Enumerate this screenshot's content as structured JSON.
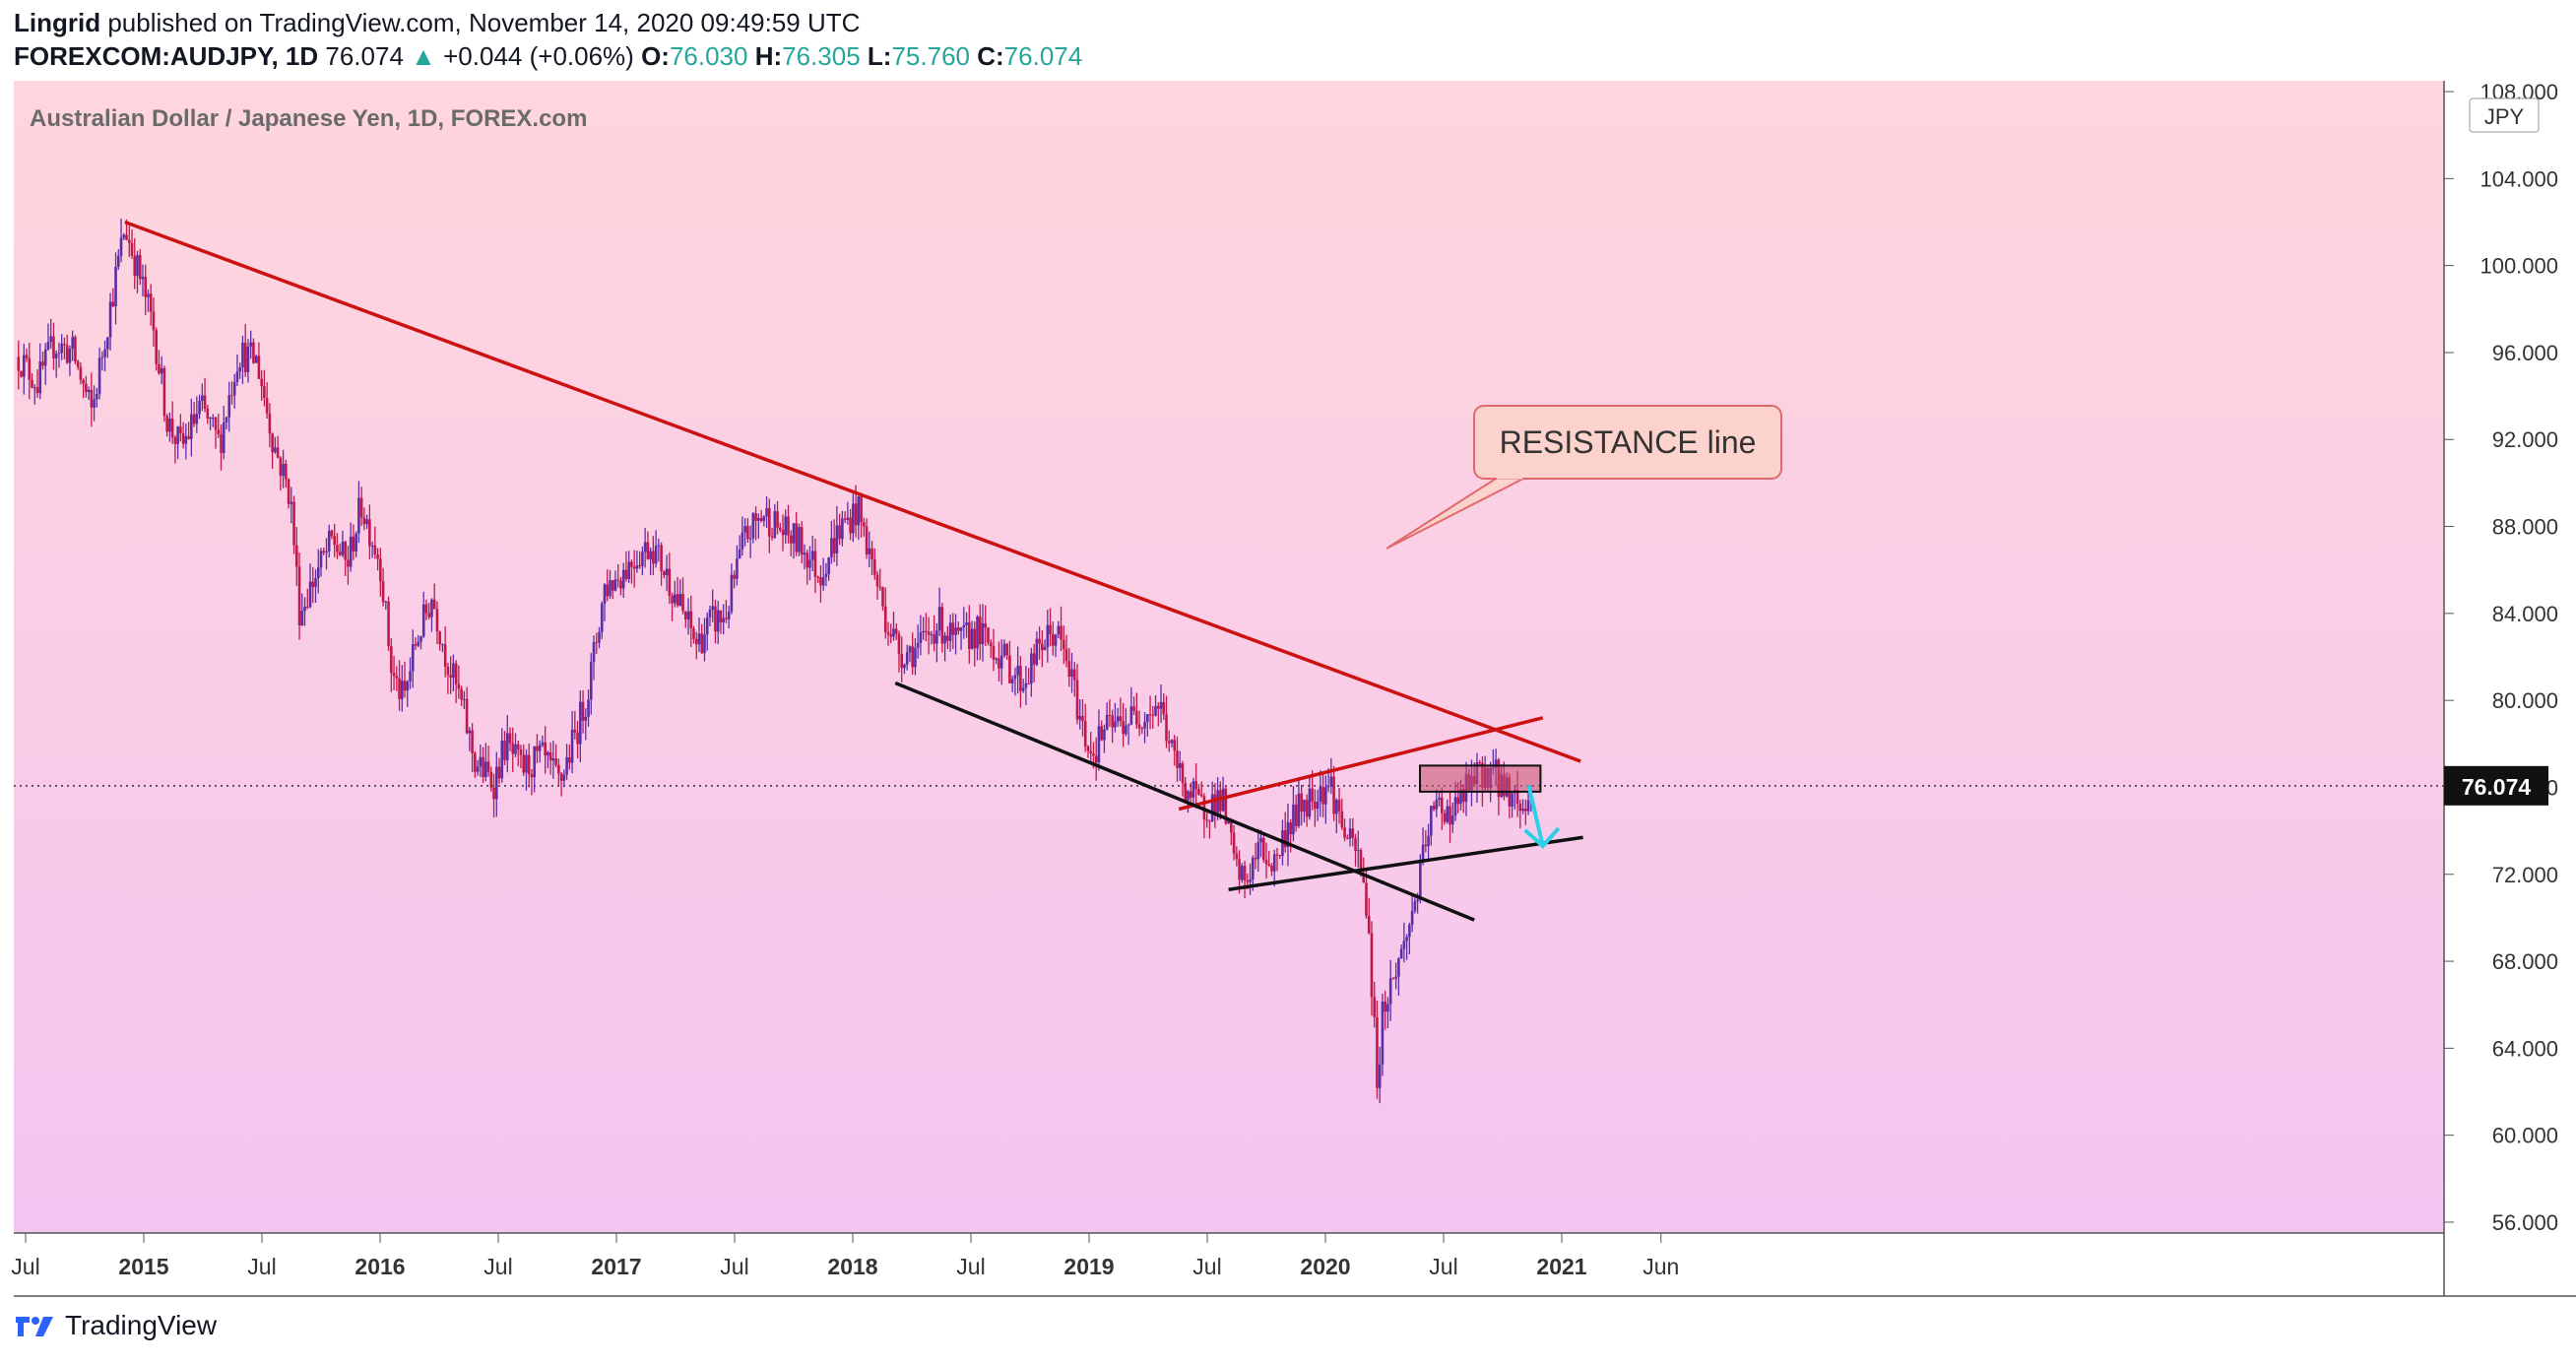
{
  "header": {
    "author": "Lingrid",
    "published": " published on TradingView.com, November 14, 2020 09:49:59 UTC",
    "symbol": "FOREXCOM:AUDJPY, 1D",
    "last": "76.074",
    "up_arrow": "▲",
    "change": "+0.044 (+0.06%)",
    "o_label": "O:",
    "o_val": "76.030",
    "h_label": "H:",
    "h_val": "76.305",
    "l_label": "L:",
    "l_val": "75.760",
    "c_label": "C:",
    "c_val": "76.074"
  },
  "footer": {
    "brand": "TradingView",
    "logo_icon": "tradingview-logo-icon"
  },
  "colors": {
    "up": "#26a69a",
    "candles_up": "#5b2ea6",
    "candles_down": "#c0184a",
    "resistance": "#cc1111",
    "support": "#111111",
    "arrow": "#29d0e8",
    "bg_top": "#ffd6dd",
    "bg_bottom": "#f5c4f0"
  },
  "chart_data": {
    "type": "candlestick",
    "title": "Australian Dollar / Japanese Yen, 1D, FOREX.com",
    "currency_label": "JPY",
    "ylim": [
      55.5,
      108.5
    ],
    "y_ticks": [
      "108.000",
      "104.000",
      "100.000",
      "96.000",
      "92.000",
      "88.000",
      "84.000",
      "80.000",
      "76.000",
      "72.000",
      "68.000",
      "64.000",
      "60.000",
      "56.000"
    ],
    "x_ticks": [
      {
        "label": "Jul",
        "t": 2014.5
      },
      {
        "label": "2015",
        "t": 2015.0
      },
      {
        "label": "Jul",
        "t": 2015.5
      },
      {
        "label": "2016",
        "t": 2016.0
      },
      {
        "label": "Jul",
        "t": 2016.5
      },
      {
        "label": "2017",
        "t": 2017.0
      },
      {
        "label": "Jul",
        "t": 2017.5
      },
      {
        "label": "2018",
        "t": 2018.0
      },
      {
        "label": "Jul",
        "t": 2018.5
      },
      {
        "label": "2019",
        "t": 2019.0
      },
      {
        "label": "Jul",
        "t": 2019.5
      },
      {
        "label": "2020",
        "t": 2020.0
      },
      {
        "label": "Jul",
        "t": 2020.5
      },
      {
        "label": "2021",
        "t": 2021.0
      },
      {
        "label": "Jun",
        "t": 2021.42
      }
    ],
    "last_price": 76.074,
    "last_price_label": "76.074",
    "price_path": [
      [
        2014.47,
        95.8
      ],
      [
        2014.55,
        94.6
      ],
      [
        2014.62,
        96.4
      ],
      [
        2014.7,
        96.0
      ],
      [
        2014.78,
        93.2
      ],
      [
        2014.84,
        97.0
      ],
      [
        2014.92,
        101.8
      ],
      [
        2014.98,
        99.6
      ],
      [
        2015.04,
        97.2
      ],
      [
        2015.1,
        92.8
      ],
      [
        2015.16,
        91.6
      ],
      [
        2015.24,
        93.5
      ],
      [
        2015.32,
        91.8
      ],
      [
        2015.4,
        96.0
      ],
      [
        2015.48,
        95.6
      ],
      [
        2015.55,
        91.8
      ],
      [
        2015.62,
        89.4
      ],
      [
        2015.66,
        84.0
      ],
      [
        2015.72,
        85.6
      ],
      [
        2015.8,
        87.4
      ],
      [
        2015.86,
        86.2
      ],
      [
        2015.92,
        89.0
      ],
      [
        2016.0,
        86.4
      ],
      [
        2016.05,
        81.2
      ],
      [
        2016.1,
        80.0
      ],
      [
        2016.15,
        82.6
      ],
      [
        2016.22,
        84.8
      ],
      [
        2016.28,
        82.0
      ],
      [
        2016.35,
        79.6
      ],
      [
        2016.4,
        77.2
      ],
      [
        2016.48,
        76.2
      ],
      [
        2016.53,
        78.0
      ],
      [
        2016.6,
        76.8
      ],
      [
        2016.68,
        77.4
      ],
      [
        2016.76,
        76.2
      ],
      [
        2016.82,
        78.2
      ],
      [
        2016.88,
        80.4
      ],
      [
        2016.95,
        85.2
      ],
      [
        2017.0,
        85.6
      ],
      [
        2017.08,
        86.6
      ],
      [
        2017.15,
        87.2
      ],
      [
        2017.22,
        85.6
      ],
      [
        2017.28,
        84.0
      ],
      [
        2017.34,
        82.6
      ],
      [
        2017.4,
        83.6
      ],
      [
        2017.46,
        83.8
      ],
      [
        2017.54,
        87.4
      ],
      [
        2017.62,
        88.6
      ],
      [
        2017.7,
        87.8
      ],
      [
        2017.78,
        87.2
      ],
      [
        2017.86,
        85.8
      ],
      [
        2017.94,
        87.8
      ],
      [
        2018.02,
        88.8
      ],
      [
        2018.08,
        86.4
      ],
      [
        2018.14,
        83.8
      ],
      [
        2018.2,
        82.2
      ],
      [
        2018.28,
        82.4
      ],
      [
        2018.36,
        83.6
      ],
      [
        2018.44,
        82.6
      ],
      [
        2018.52,
        83.2
      ],
      [
        2018.6,
        82.4
      ],
      [
        2018.66,
        81.6
      ],
      [
        2018.72,
        80.8
      ],
      [
        2018.8,
        82.6
      ],
      [
        2018.86,
        83.2
      ],
      [
        2018.92,
        81.2
      ],
      [
        2018.98,
        78.4
      ],
      [
        2019.02,
        77.6
      ],
      [
        2019.06,
        78.6
      ],
      [
        2019.14,
        79.0
      ],
      [
        2019.22,
        79.4
      ],
      [
        2019.3,
        79.8
      ],
      [
        2019.36,
        77.2
      ],
      [
        2019.42,
        75.8
      ],
      [
        2019.48,
        75.0
      ],
      [
        2019.56,
        75.6
      ],
      [
        2019.62,
        72.2
      ],
      [
        2019.66,
        71.6
      ],
      [
        2019.72,
        73.2
      ],
      [
        2019.78,
        72.4
      ],
      [
        2019.84,
        74.2
      ],
      [
        2019.9,
        75.2
      ],
      [
        2019.96,
        75.8
      ],
      [
        2020.02,
        76.2
      ],
      [
        2020.06,
        74.6
      ],
      [
        2020.1,
        73.4
      ],
      [
        2020.14,
        72.8
      ],
      [
        2020.18,
        70.2
      ],
      [
        2020.2,
        66.0
      ],
      [
        2020.22,
        62.4
      ],
      [
        2020.24,
        65.6
      ],
      [
        2020.28,
        67.0
      ],
      [
        2020.34,
        69.0
      ],
      [
        2020.4,
        71.8
      ],
      [
        2020.44,
        74.4
      ],
      [
        2020.48,
        75.2
      ],
      [
        2020.54,
        74.8
      ],
      [
        2020.6,
        76.0
      ],
      [
        2020.66,
        76.6
      ],
      [
        2020.7,
        76.8
      ],
      [
        2020.74,
        76.2
      ],
      [
        2020.8,
        75.6
      ],
      [
        2020.84,
        74.8
      ],
      [
        2020.87,
        76.074
      ]
    ],
    "annotations": [
      {
        "text": "RESISTANCE line",
        "kind": "callout"
      }
    ],
    "trendlines": [
      {
        "name": "resistance-line",
        "color": "red",
        "from": [
          2014.92,
          102.0
        ],
        "to": [
          2021.08,
          77.2
        ]
      },
      {
        "name": "rising-red-line",
        "color": "red",
        "from": [
          2019.38,
          75.0
        ],
        "to": [
          2020.92,
          79.2
        ]
      },
      {
        "name": "descending-black-line",
        "color": "black",
        "from": [
          2018.18,
          80.8
        ],
        "to": [
          2020.63,
          69.9
        ]
      },
      {
        "name": "support-line",
        "color": "black",
        "from": [
          2019.59,
          71.3
        ],
        "to": [
          2021.09,
          73.7
        ]
      }
    ],
    "zone": {
      "name": "consolidation-box",
      "from": [
        2020.4,
        77.0
      ],
      "to": [
        2020.91,
        75.8
      ]
    },
    "projection_arrow": {
      "from": [
        2020.86,
        76.1
      ],
      "to": [
        2020.92,
        73.3
      ]
    }
  }
}
